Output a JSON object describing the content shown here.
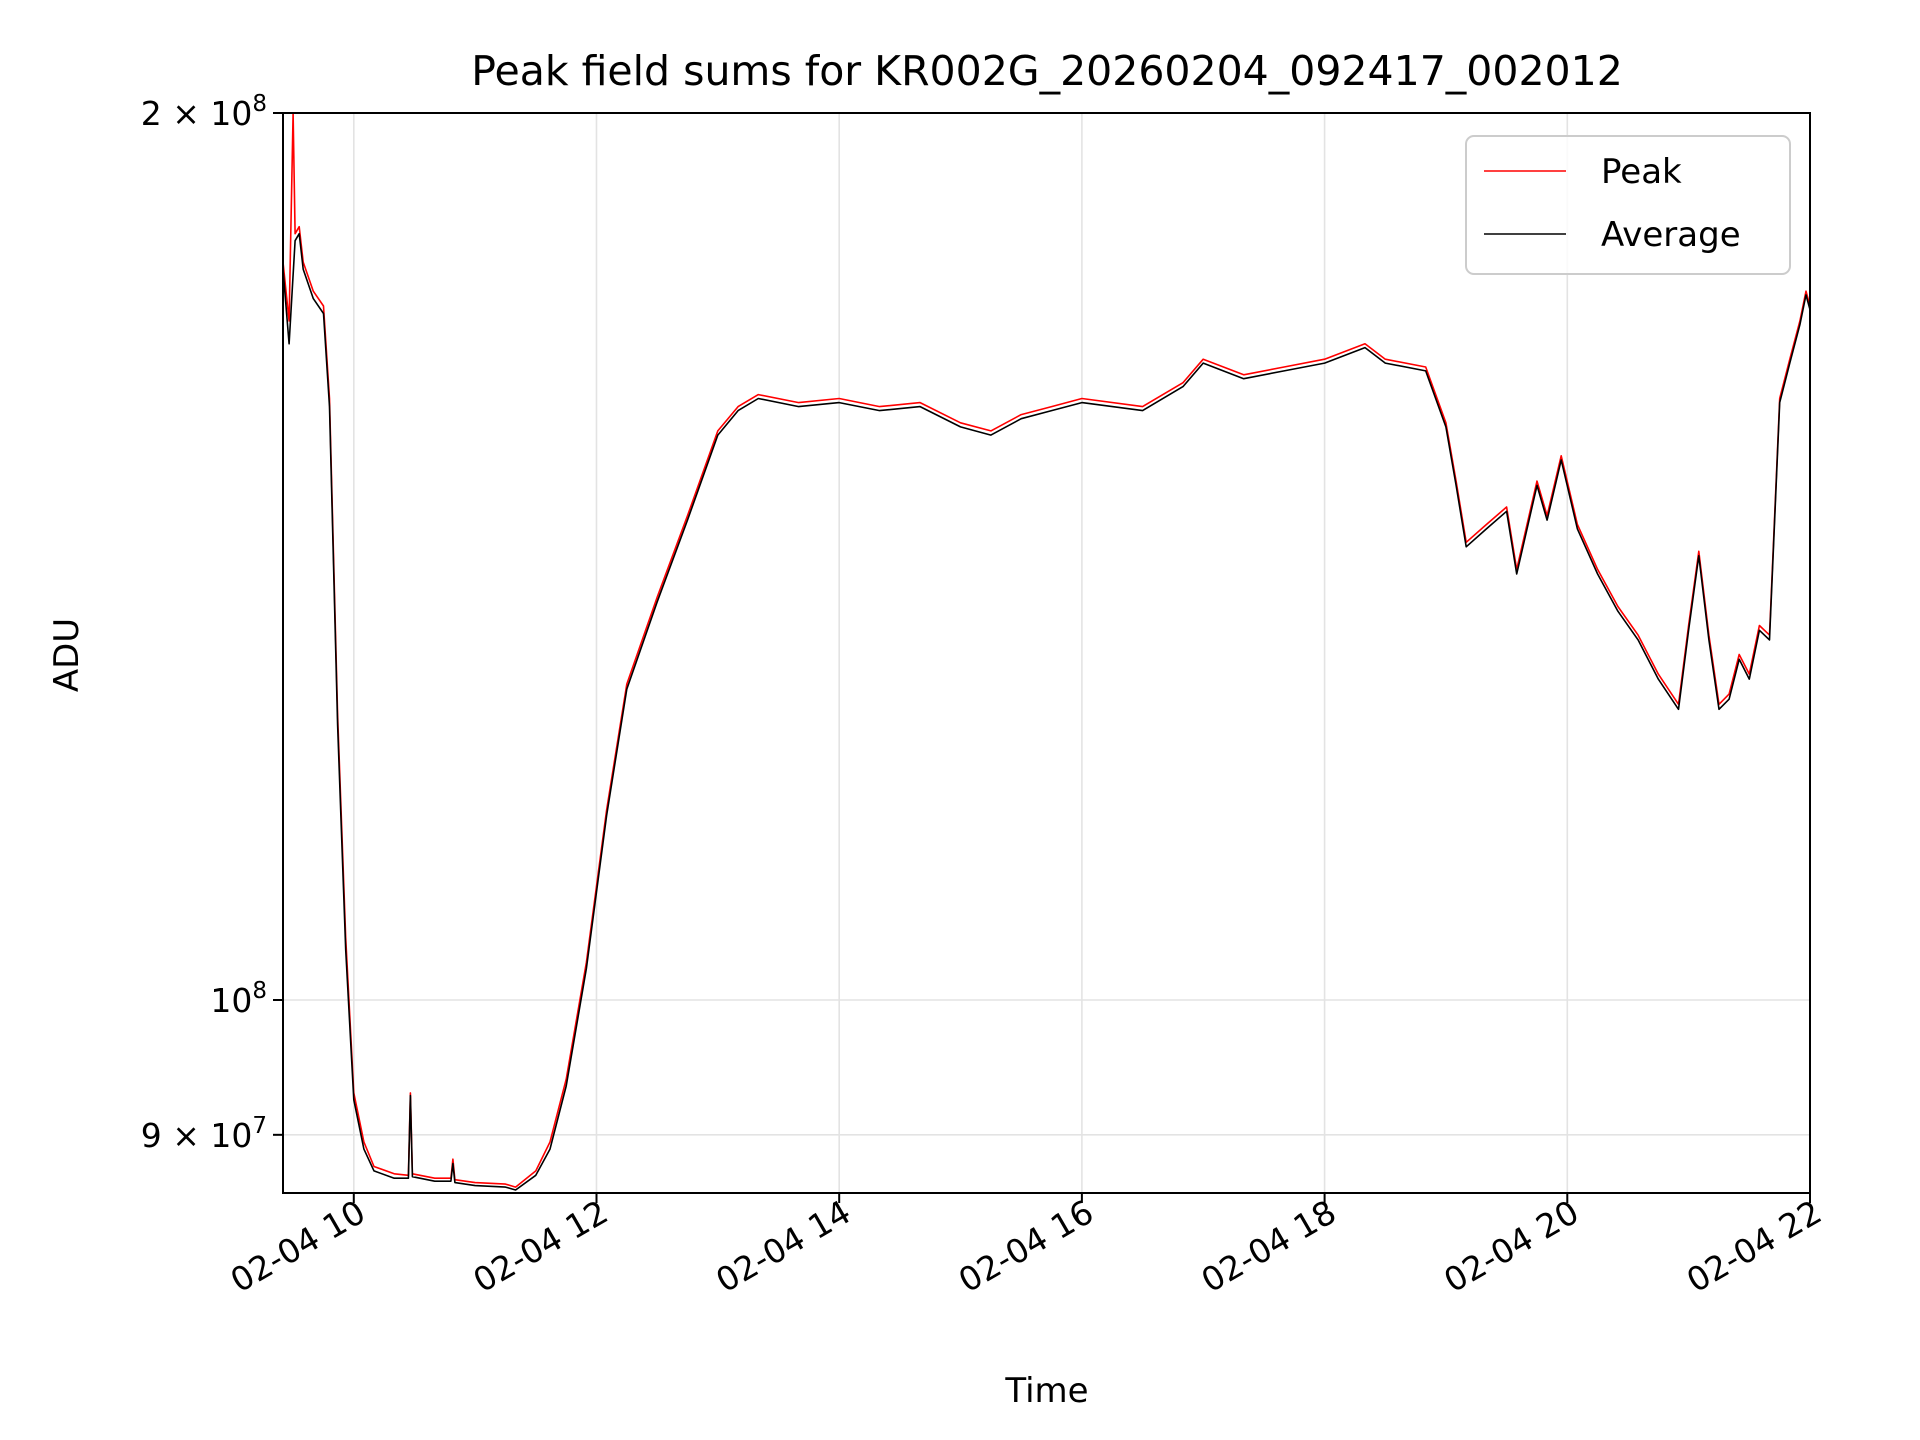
{
  "chart_data": {
    "type": "line",
    "title": "Peak field sums for KR002G_20260204_092417_002012",
    "xlabel": "Time",
    "ylabel": "ADU",
    "x_scale": "time",
    "y_scale": "log",
    "xlim": [
      "2026-02-04 09:25",
      "2026-02-04 22:00"
    ],
    "ylim": [
      86000000,
      200000000
    ],
    "x_ticks": [
      {
        "value": "2026-02-04 10:00",
        "label": "02-04 10"
      },
      {
        "value": "2026-02-04 12:00",
        "label": "02-04 12"
      },
      {
        "value": "2026-02-04 14:00",
        "label": "02-04 14"
      },
      {
        "value": "2026-02-04 16:00",
        "label": "02-04 16"
      },
      {
        "value": "2026-02-04 18:00",
        "label": "02-04 18"
      },
      {
        "value": "2026-02-04 20:00",
        "label": "02-04 20"
      },
      {
        "value": "2026-02-04 22:00",
        "label": "02-04 22"
      }
    ],
    "y_ticks": [
      {
        "value": 90000000,
        "mantissa": "9",
        "times": "×",
        "base": "10",
        "exp": "7"
      },
      {
        "value": 100000000,
        "mantissa": "",
        "times": "",
        "base": "10",
        "exp": "8"
      },
      {
        "value": 200000000,
        "mantissa": "2",
        "times": "×",
        "base": "10",
        "exp": "8"
      }
    ],
    "grid": true,
    "legend_position": "top-right",
    "series": [
      {
        "name": "Peak",
        "color": "#ff0000",
        "points": [
          [
            "2026-02-04 09:25",
            178000000
          ],
          [
            "2026-02-04 09:28",
            170000000
          ],
          [
            "2026-02-04 09:30",
            200000000
          ],
          [
            "2026-02-04 09:31",
            182000000
          ],
          [
            "2026-02-04 09:33",
            183000000
          ],
          [
            "2026-02-04 09:35",
            178000000
          ],
          [
            "2026-02-04 09:40",
            174000000
          ],
          [
            "2026-02-04 09:45",
            172000000
          ],
          [
            "2026-02-04 09:48",
            160000000
          ],
          [
            "2026-02-04 09:52",
            125000000
          ],
          [
            "2026-02-04 09:56",
            105000000
          ],
          [
            "2026-02-04 10:00",
            93000000
          ],
          [
            "2026-02-04 10:05",
            89500000
          ],
          [
            "2026-02-04 10:10",
            87800000
          ],
          [
            "2026-02-04 10:20",
            87300000
          ],
          [
            "2026-02-04 10:27",
            87200000
          ],
          [
            "2026-02-04 10:28",
            93000000
          ],
          [
            "2026-02-04 10:29",
            87300000
          ],
          [
            "2026-02-04 10:40",
            87000000
          ],
          [
            "2026-02-04 10:48",
            87000000
          ],
          [
            "2026-02-04 10:49",
            88300000
          ],
          [
            "2026-02-04 10:50",
            86900000
          ],
          [
            "2026-02-04 11:00",
            86700000
          ],
          [
            "2026-02-04 11:15",
            86600000
          ],
          [
            "2026-02-04 11:20",
            86400000
          ],
          [
            "2026-02-04 11:30",
            87500000
          ],
          [
            "2026-02-04 11:37",
            89500000
          ],
          [
            "2026-02-04 11:45",
            94000000
          ],
          [
            "2026-02-04 11:55",
            103000000
          ],
          [
            "2026-02-04 12:05",
            116000000
          ],
          [
            "2026-02-04 12:15",
            128000000
          ],
          [
            "2026-02-04 12:30",
            137000000
          ],
          [
            "2026-02-04 12:45",
            146000000
          ],
          [
            "2026-02-04 13:00",
            156000000
          ],
          [
            "2026-02-04 13:10",
            159000000
          ],
          [
            "2026-02-04 13:20",
            160500000
          ],
          [
            "2026-02-04 13:40",
            159500000
          ],
          [
            "2026-02-04 14:00",
            160000000
          ],
          [
            "2026-02-04 14:20",
            159000000
          ],
          [
            "2026-02-04 14:40",
            159500000
          ],
          [
            "2026-02-04 15:00",
            157000000
          ],
          [
            "2026-02-04 15:15",
            156000000
          ],
          [
            "2026-02-04 15:30",
            158000000
          ],
          [
            "2026-02-04 15:45",
            159000000
          ],
          [
            "2026-02-04 16:00",
            160000000
          ],
          [
            "2026-02-04 16:30",
            159000000
          ],
          [
            "2026-02-04 16:50",
            162000000
          ],
          [
            "2026-02-04 17:00",
            165000000
          ],
          [
            "2026-02-04 17:20",
            163000000
          ],
          [
            "2026-02-04 17:40",
            164000000
          ],
          [
            "2026-02-04 18:00",
            165000000
          ],
          [
            "2026-02-04 18:20",
            167000000
          ],
          [
            "2026-02-04 18:30",
            165000000
          ],
          [
            "2026-02-04 18:50",
            164000000
          ],
          [
            "2026-02-04 19:00",
            157000000
          ],
          [
            "2026-02-04 19:05",
            150000000
          ],
          [
            "2026-02-04 19:10",
            143000000
          ],
          [
            "2026-02-04 19:20",
            145000000
          ],
          [
            "2026-02-04 19:30",
            147000000
          ],
          [
            "2026-02-04 19:35",
            140000000
          ],
          [
            "2026-02-04 19:45",
            150000000
          ],
          [
            "2026-02-04 19:50",
            146000000
          ],
          [
            "2026-02-04 19:57",
            153000000
          ],
          [
            "2026-02-04 20:05",
            145000000
          ],
          [
            "2026-02-04 20:15",
            140000000
          ],
          [
            "2026-02-04 20:25",
            136000000
          ],
          [
            "2026-02-04 20:35",
            133000000
          ],
          [
            "2026-02-04 20:45",
            129000000
          ],
          [
            "2026-02-04 20:55",
            126000000
          ],
          [
            "2026-02-04 21:00",
            134000000
          ],
          [
            "2026-02-04 21:05",
            142000000
          ],
          [
            "2026-02-04 21:10",
            133000000
          ],
          [
            "2026-02-04 21:15",
            126000000
          ],
          [
            "2026-02-04 21:20",
            127000000
          ],
          [
            "2026-02-04 21:25",
            131000000
          ],
          [
            "2026-02-04 21:30",
            129000000
          ],
          [
            "2026-02-04 21:35",
            134000000
          ],
          [
            "2026-02-04 21:40",
            133000000
          ],
          [
            "2026-02-04 21:45",
            160000000
          ],
          [
            "2026-02-04 21:50",
            165000000
          ],
          [
            "2026-02-04 21:55",
            170000000
          ],
          [
            "2026-02-04 21:58",
            174000000
          ],
          [
            "2026-02-04 22:00",
            172000000
          ]
        ]
      },
      {
        "name": "Average",
        "color": "#000000",
        "points": [
          [
            "2026-02-04 09:25",
            177000000
          ],
          [
            "2026-02-04 09:28",
            167000000
          ],
          [
            "2026-02-04 09:31",
            181000000
          ],
          [
            "2026-02-04 09:33",
            182000000
          ],
          [
            "2026-02-04 09:35",
            177000000
          ],
          [
            "2026-02-04 09:40",
            173000000
          ],
          [
            "2026-02-04 09:45",
            171000000
          ],
          [
            "2026-02-04 09:48",
            159000000
          ],
          [
            "2026-02-04 09:52",
            124000000
          ],
          [
            "2026-02-04 09:56",
            104000000
          ],
          [
            "2026-02-04 10:00",
            92500000
          ],
          [
            "2026-02-04 10:05",
            89000000
          ],
          [
            "2026-02-04 10:10",
            87500000
          ],
          [
            "2026-02-04 10:20",
            87000000
          ],
          [
            "2026-02-04 10:27",
            87000000
          ],
          [
            "2026-02-04 10:28",
            92800000
          ],
          [
            "2026-02-04 10:29",
            87100000
          ],
          [
            "2026-02-04 10:40",
            86800000
          ],
          [
            "2026-02-04 10:48",
            86800000
          ],
          [
            "2026-02-04 10:49",
            88000000
          ],
          [
            "2026-02-04 10:50",
            86700000
          ],
          [
            "2026-02-04 11:00",
            86500000
          ],
          [
            "2026-02-04 11:15",
            86400000
          ],
          [
            "2026-02-04 11:20",
            86200000
          ],
          [
            "2026-02-04 11:30",
            87200000
          ],
          [
            "2026-02-04 11:37",
            89000000
          ],
          [
            "2026-02-04 11:45",
            93500000
          ],
          [
            "2026-02-04 11:55",
            102500000
          ],
          [
            "2026-02-04 12:05",
            115500000
          ],
          [
            "2026-02-04 12:15",
            127500000
          ],
          [
            "2026-02-04 12:30",
            136500000
          ],
          [
            "2026-02-04 12:45",
            145500000
          ],
          [
            "2026-02-04 13:00",
            155500000
          ],
          [
            "2026-02-04 13:10",
            158500000
          ],
          [
            "2026-02-04 13:20",
            160000000
          ],
          [
            "2026-02-04 13:40",
            159000000
          ],
          [
            "2026-02-04 14:00",
            159500000
          ],
          [
            "2026-02-04 14:20",
            158500000
          ],
          [
            "2026-02-04 14:40",
            159000000
          ],
          [
            "2026-02-04 15:00",
            156500000
          ],
          [
            "2026-02-04 15:15",
            155500000
          ],
          [
            "2026-02-04 15:30",
            157500000
          ],
          [
            "2026-02-04 15:45",
            158500000
          ],
          [
            "2026-02-04 16:00",
            159500000
          ],
          [
            "2026-02-04 16:30",
            158500000
          ],
          [
            "2026-02-04 16:50",
            161500000
          ],
          [
            "2026-02-04 17:00",
            164500000
          ],
          [
            "2026-02-04 17:20",
            162500000
          ],
          [
            "2026-02-04 17:40",
            163500000
          ],
          [
            "2026-02-04 18:00",
            164500000
          ],
          [
            "2026-02-04 18:20",
            166500000
          ],
          [
            "2026-02-04 18:30",
            164500000
          ],
          [
            "2026-02-04 18:50",
            163500000
          ],
          [
            "2026-02-04 19:00",
            156500000
          ],
          [
            "2026-02-04 19:05",
            149500000
          ],
          [
            "2026-02-04 19:10",
            142500000
          ],
          [
            "2026-02-04 19:20",
            144500000
          ],
          [
            "2026-02-04 19:30",
            146500000
          ],
          [
            "2026-02-04 19:35",
            139500000
          ],
          [
            "2026-02-04 19:45",
            149500000
          ],
          [
            "2026-02-04 19:50",
            145500000
          ],
          [
            "2026-02-04 19:57",
            152500000
          ],
          [
            "2026-02-04 20:05",
            144500000
          ],
          [
            "2026-02-04 20:15",
            139500000
          ],
          [
            "2026-02-04 20:25",
            135500000
          ],
          [
            "2026-02-04 20:35",
            132500000
          ],
          [
            "2026-02-04 20:45",
            128500000
          ],
          [
            "2026-02-04 20:55",
            125500000
          ],
          [
            "2026-02-04 21:00",
            133500000
          ],
          [
            "2026-02-04 21:05",
            141500000
          ],
          [
            "2026-02-04 21:10",
            132500000
          ],
          [
            "2026-02-04 21:15",
            125500000
          ],
          [
            "2026-02-04 21:20",
            126500000
          ],
          [
            "2026-02-04 21:25",
            130500000
          ],
          [
            "2026-02-04 21:30",
            128500000
          ],
          [
            "2026-02-04 21:35",
            133500000
          ],
          [
            "2026-02-04 21:40",
            132500000
          ],
          [
            "2026-02-04 21:45",
            159500000
          ],
          [
            "2026-02-04 21:50",
            164500000
          ],
          [
            "2026-02-04 21:55",
            169500000
          ],
          [
            "2026-02-04 21:58",
            173500000
          ],
          [
            "2026-02-04 22:00",
            171500000
          ]
        ]
      }
    ]
  }
}
